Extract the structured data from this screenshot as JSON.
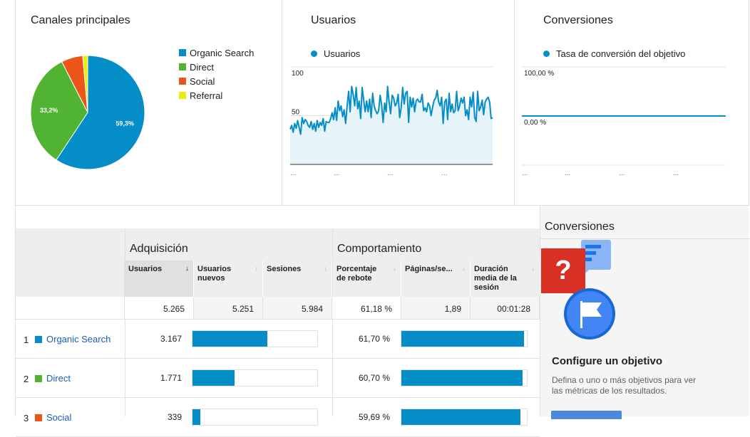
{
  "canales": {
    "title": "Canales principales",
    "legend": [
      {
        "label": "Organic Search",
        "color": "#058dc7"
      },
      {
        "label": "Direct",
        "color": "#50b432"
      },
      {
        "label": "Social",
        "color": "#ed561b"
      },
      {
        "label": "Referral",
        "color": "#edef00"
      }
    ],
    "chart_data": {
      "type": "pie",
      "labels": [
        "Organic Search",
        "Direct",
        "Social",
        "Referral"
      ],
      "values": [
        59.3,
        33.2,
        6.1,
        1.4
      ],
      "data_labels": [
        "59,3%",
        "33,2%",
        "",
        ""
      ]
    }
  },
  "usuarios": {
    "title": "Usuarios",
    "series_label": "Usuarios",
    "y_ticks": [
      "100",
      "50"
    ],
    "x_ticks": [
      "...",
      "...",
      "...",
      "..."
    ],
    "chart_data": {
      "type": "area",
      "y_min": 0,
      "y_max": 100,
      "values": [
        36,
        40,
        33,
        42,
        37,
        45,
        38,
        31,
        48,
        42,
        46,
        44,
        40,
        38,
        44,
        36,
        42,
        34,
        45,
        38,
        43,
        40,
        47,
        34,
        44,
        43,
        43,
        47,
        53,
        46,
        58,
        45,
        65,
        55,
        60,
        49,
        56,
        42,
        60,
        75,
        54,
        80,
        72,
        60,
        79,
        57,
        65,
        47,
        79,
        66,
        54,
        65,
        54,
        67,
        48,
        73,
        60,
        55,
        52,
        55,
        71,
        61,
        43,
        63,
        54,
        80,
        64,
        52,
        71,
        68,
        60,
        63,
        72,
        48,
        58,
        79,
        62,
        73,
        75,
        43,
        69,
        59,
        68,
        54,
        65,
        67,
        64,
        64,
        72,
        55,
        58,
        54,
        63,
        60,
        50,
        59,
        66,
        68,
        76,
        64,
        60,
        69,
        42,
        64,
        67,
        46,
        73,
        54,
        62,
        53,
        55,
        75,
        55,
        60,
        68,
        63,
        69,
        50,
        56,
        46,
        69,
        59,
        74,
        48,
        44,
        75,
        55,
        59,
        66,
        51,
        64,
        67,
        69,
        64,
        47,
        48
      ]
    }
  },
  "conversiones": {
    "title": "Conversiones",
    "series_label": "Tasa de conversión del objetivo",
    "y_ticks": [
      "100,00 %",
      "0,00 %"
    ],
    "x_ticks": [
      "...",
      "...",
      "...",
      "..."
    ],
    "chart_data": {
      "type": "line",
      "y_min": 0,
      "y_max": 100,
      "values": [
        0,
        0
      ]
    }
  },
  "table": {
    "group_acquisition": "Adquisición",
    "group_behavior": "Comportamiento",
    "columns": {
      "usuarios": "Usuarios",
      "usuarios_nuevos": "Usuarios nuevos",
      "sesiones": "Sesiones",
      "rebote": "Porcentaje de rebote",
      "paginas": "Páginas/se...",
      "duracion": "Duración media de la sesión"
    },
    "sort_active": "↓",
    "sort_inactive": "↓",
    "totals": {
      "usuarios": "5.265",
      "usuarios_nuevos": "5.251",
      "sesiones": "5.984",
      "rebote": "61,18 %",
      "paginas": "1,89",
      "duracion": "00:01:28"
    },
    "rows": [
      {
        "rank": "1",
        "name": "Organic Search",
        "color": "#058dc7",
        "usuarios": "3.167",
        "usuarios_share": 0.601,
        "rebote": "61,70 %",
        "rebote_share": 0.98
      },
      {
        "rank": "2",
        "name": "Direct",
        "color": "#50b432",
        "usuarios": "1.771",
        "usuarios_share": 0.336,
        "rebote": "60,70 %",
        "rebote_share": 0.965
      },
      {
        "rank": "3",
        "name": "Social",
        "color": "#ed561b",
        "usuarios": "339",
        "usuarios_share": 0.064,
        "rebote": "59,69 %",
        "rebote_share": 0.95
      }
    ]
  },
  "side": {
    "title": "Conversiones",
    "goal_heading": "Configure un objetivo",
    "goal_desc": "Defina o uno o más objetivos para ver las métricas de los resultados."
  }
}
